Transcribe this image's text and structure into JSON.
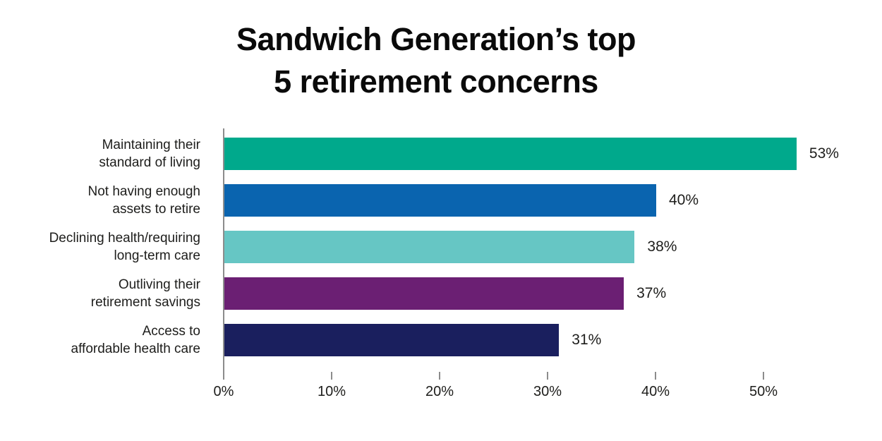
{
  "title": {
    "line1": "Sandwich Generation’s top",
    "line2": "5 retirement concerns"
  },
  "chart_data": {
    "type": "bar",
    "orientation": "horizontal",
    "title": "Sandwich Generation’s top 5 retirement concerns",
    "categories": [
      "Maintaining their standard of living",
      "Not having enough assets to retire",
      "Declining health/requiring long-term care",
      "Outliving their retirement savings",
      "Access to affordable health care"
    ],
    "label_lines": [
      [
        "Maintaining their",
        "standard of living"
      ],
      [
        "Not having enough",
        "assets to retire"
      ],
      [
        "Declining health/requiring",
        "long-term care"
      ],
      [
        "Outliving their",
        "retirement savings"
      ],
      [
        "Access to",
        "affordable health care"
      ]
    ],
    "values": [
      53,
      40,
      38,
      37,
      31
    ],
    "value_labels": [
      "53%",
      "40%",
      "38%",
      "37%",
      "31%"
    ],
    "bar_colors": [
      "#00a98c",
      "#0a64af",
      "#66c6c4",
      "#6b1f73",
      "#1a1f5e"
    ],
    "x_ticks": [
      {
        "value": 0,
        "label": "0%"
      },
      {
        "value": 10,
        "label": "10%"
      },
      {
        "value": 20,
        "label": "20%"
      },
      {
        "value": 30,
        "label": "30%"
      },
      {
        "value": 40,
        "label": "40%"
      },
      {
        "value": 50,
        "label": "50%"
      }
    ],
    "xlim": [
      0,
      53.8
    ],
    "xlabel": "",
    "ylabel": "",
    "grid": false,
    "legend": false,
    "axis_color": "#8c8c8c",
    "text_color": "#1d1d1b"
  }
}
